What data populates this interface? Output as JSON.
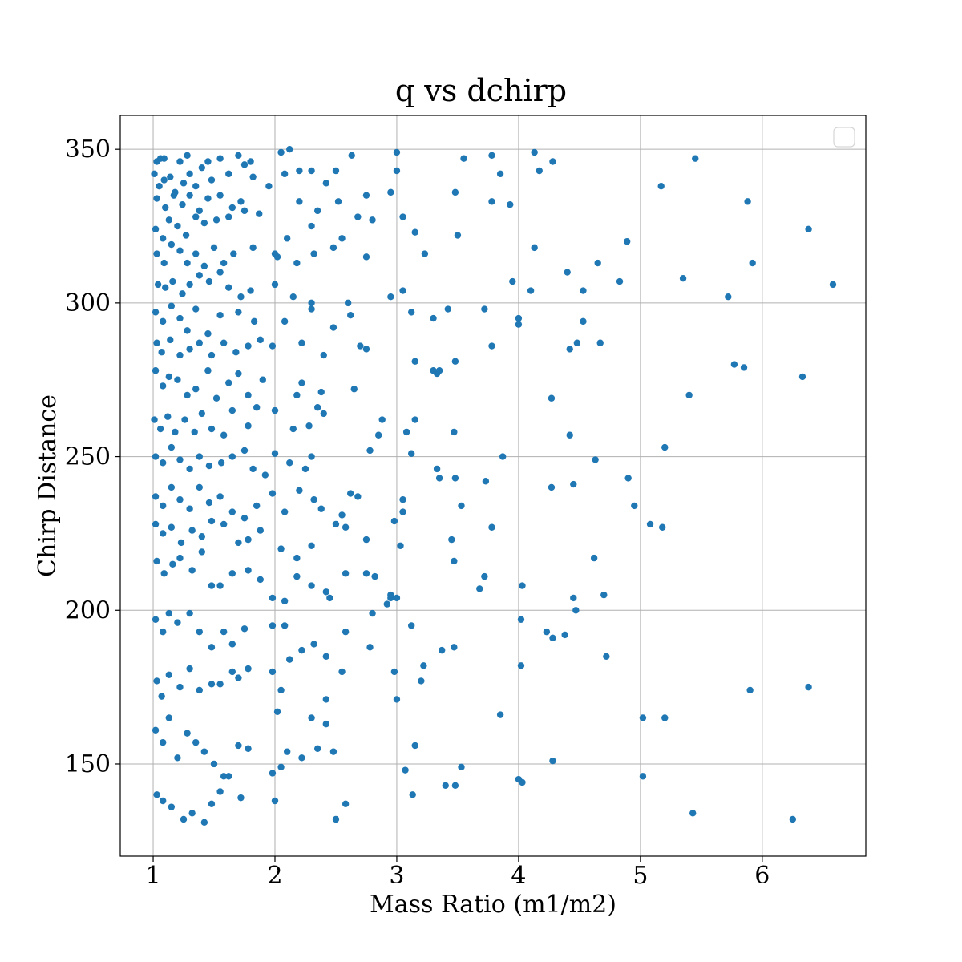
{
  "chart_data": {
    "type": "scatter",
    "title": "q vs dchirp",
    "xlabel": "Mass Ratio (m1/m2)",
    "ylabel": "Chirp Distance",
    "xlim": [
      0.73,
      6.85
    ],
    "ylim": [
      120,
      361
    ],
    "xticks": [
      1,
      2,
      3,
      4,
      5,
      6
    ],
    "yticks": [
      150,
      200,
      250,
      300,
      350
    ],
    "grid": true,
    "legend": "top-right, empty",
    "color": "#1f77b4",
    "points": [
      [
        1.03,
        346
      ],
      [
        1.06,
        347
      ],
      [
        1.09,
        347
      ],
      [
        1.22,
        346
      ],
      [
        1.28,
        348
      ],
      [
        1.45,
        346
      ],
      [
        1.55,
        347
      ],
      [
        1.7,
        348
      ],
      [
        1.8,
        346
      ],
      [
        2.05,
        349
      ],
      [
        2.12,
        350
      ],
      [
        2.63,
        348
      ],
      [
        3.0,
        349
      ],
      [
        3.55,
        347
      ],
      [
        3.78,
        348
      ],
      [
        4.13,
        349
      ],
      [
        4.28,
        346
      ],
      [
        5.45,
        347
      ],
      [
        1.01,
        342
      ],
      [
        1.05,
        338
      ],
      [
        1.09,
        340
      ],
      [
        1.14,
        341
      ],
      [
        1.18,
        336
      ],
      [
        1.25,
        339
      ],
      [
        1.3,
        342
      ],
      [
        1.35,
        338
      ],
      [
        1.4,
        344
      ],
      [
        1.48,
        340
      ],
      [
        1.62,
        342
      ],
      [
        1.75,
        345
      ],
      [
        1.82,
        341
      ],
      [
        2.08,
        342
      ],
      [
        2.2,
        343
      ],
      [
        2.3,
        343
      ],
      [
        2.42,
        339
      ],
      [
        2.5,
        343
      ],
      [
        3.0,
        343
      ],
      [
        3.48,
        336
      ],
      [
        3.85,
        342
      ],
      [
        4.17,
        343
      ],
      [
        5.17,
        338
      ],
      [
        1.03,
        334
      ],
      [
        1.1,
        331
      ],
      [
        1.17,
        335
      ],
      [
        1.24,
        332
      ],
      [
        1.3,
        335
      ],
      [
        1.38,
        330
      ],
      [
        1.45,
        334
      ],
      [
        1.55,
        335
      ],
      [
        1.65,
        331
      ],
      [
        1.72,
        333
      ],
      [
        1.95,
        338
      ],
      [
        2.2,
        333
      ],
      [
        2.35,
        330
      ],
      [
        2.52,
        333
      ],
      [
        2.75,
        335
      ],
      [
        2.95,
        336
      ],
      [
        3.78,
        333
      ],
      [
        3.93,
        332
      ],
      [
        5.88,
        333
      ],
      [
        1.02,
        324
      ],
      [
        1.08,
        321
      ],
      [
        1.13,
        327
      ],
      [
        1.2,
        325
      ],
      [
        1.27,
        322
      ],
      [
        1.35,
        328
      ],
      [
        1.42,
        326
      ],
      [
        1.52,
        327
      ],
      [
        1.62,
        328
      ],
      [
        1.75,
        330
      ],
      [
        1.87,
        329
      ],
      [
        2.0,
        316
      ],
      [
        2.1,
        321
      ],
      [
        2.3,
        325
      ],
      [
        2.55,
        321
      ],
      [
        2.68,
        328
      ],
      [
        2.8,
        327
      ],
      [
        3.05,
        328
      ],
      [
        3.15,
        323
      ],
      [
        3.5,
        322
      ],
      [
        6.38,
        324
      ],
      [
        1.03,
        316
      ],
      [
        1.09,
        313
      ],
      [
        1.15,
        319
      ],
      [
        1.22,
        317
      ],
      [
        1.28,
        313
      ],
      [
        1.35,
        316
      ],
      [
        1.42,
        312
      ],
      [
        1.5,
        318
      ],
      [
        1.58,
        313
      ],
      [
        1.66,
        316
      ],
      [
        1.82,
        318
      ],
      [
        2.02,
        315
      ],
      [
        2.18,
        313
      ],
      [
        2.32,
        316
      ],
      [
        2.48,
        318
      ],
      [
        2.75,
        315
      ],
      [
        3.23,
        316
      ],
      [
        4.13,
        318
      ],
      [
        4.65,
        313
      ],
      [
        4.89,
        320
      ],
      [
        5.92,
        313
      ],
      [
        1.04,
        306
      ],
      [
        1.1,
        305
      ],
      [
        1.16,
        307
      ],
      [
        1.24,
        303
      ],
      [
        1.3,
        306
      ],
      [
        1.38,
        309
      ],
      [
        1.46,
        307
      ],
      [
        1.55,
        310
      ],
      [
        1.62,
        305
      ],
      [
        1.72,
        302
      ],
      [
        1.8,
        304
      ],
      [
        2.0,
        306
      ],
      [
        2.15,
        302
      ],
      [
        2.3,
        300
      ],
      [
        2.6,
        300
      ],
      [
        2.95,
        302
      ],
      [
        3.05,
        304
      ],
      [
        3.95,
        307
      ],
      [
        4.1,
        304
      ],
      [
        4.4,
        310
      ],
      [
        4.53,
        304
      ],
      [
        4.83,
        307
      ],
      [
        5.35,
        308
      ],
      [
        5.72,
        302
      ],
      [
        6.58,
        306
      ],
      [
        1.02,
        297
      ],
      [
        1.08,
        294
      ],
      [
        1.15,
        299
      ],
      [
        1.22,
        295
      ],
      [
        1.28,
        291
      ],
      [
        1.35,
        298
      ],
      [
        1.45,
        290
      ],
      [
        1.55,
        296
      ],
      [
        1.7,
        297
      ],
      [
        1.83,
        294
      ],
      [
        2.08,
        294
      ],
      [
        2.3,
        298
      ],
      [
        2.48,
        292
      ],
      [
        2.62,
        296
      ],
      [
        3.12,
        297
      ],
      [
        3.3,
        295
      ],
      [
        3.42,
        298
      ],
      [
        3.72,
        298
      ],
      [
        4.0,
        293
      ],
      [
        4.0,
        295
      ],
      [
        4.53,
        294
      ],
      [
        1.03,
        287
      ],
      [
        1.07,
        284
      ],
      [
        1.14,
        288
      ],
      [
        1.22,
        283
      ],
      [
        1.3,
        285
      ],
      [
        1.38,
        287
      ],
      [
        1.48,
        283
      ],
      [
        1.58,
        287
      ],
      [
        1.68,
        284
      ],
      [
        1.78,
        286
      ],
      [
        1.88,
        288
      ],
      [
        1.98,
        286
      ],
      [
        2.22,
        287
      ],
      [
        2.4,
        283
      ],
      [
        2.7,
        286
      ],
      [
        2.75,
        285
      ],
      [
        3.15,
        281
      ],
      [
        3.3,
        278
      ],
      [
        3.48,
        281
      ],
      [
        3.78,
        286
      ],
      [
        4.42,
        285
      ],
      [
        4.48,
        287
      ],
      [
        4.67,
        287
      ],
      [
        5.77,
        280
      ],
      [
        5.85,
        279
      ],
      [
        1.02,
        278
      ],
      [
        1.08,
        273
      ],
      [
        1.13,
        276
      ],
      [
        1.2,
        275
      ],
      [
        1.28,
        270
      ],
      [
        1.35,
        272
      ],
      [
        1.45,
        278
      ],
      [
        1.52,
        269
      ],
      [
        1.62,
        274
      ],
      [
        1.7,
        277
      ],
      [
        1.78,
        270
      ],
      [
        1.9,
        275
      ],
      [
        2.18,
        270
      ],
      [
        2.22,
        274
      ],
      [
        2.35,
        266
      ],
      [
        2.38,
        271
      ],
      [
        2.65,
        272
      ],
      [
        3.33,
        277
      ],
      [
        3.35,
        278
      ],
      [
        4.27,
        269
      ],
      [
        5.4,
        270
      ],
      [
        6.33,
        276
      ],
      [
        1.01,
        262
      ],
      [
        1.06,
        259
      ],
      [
        1.12,
        263
      ],
      [
        1.18,
        258
      ],
      [
        1.26,
        262
      ],
      [
        1.34,
        258
      ],
      [
        1.4,
        264
      ],
      [
        1.48,
        259
      ],
      [
        1.58,
        257
      ],
      [
        1.65,
        265
      ],
      [
        1.78,
        260
      ],
      [
        1.85,
        266
      ],
      [
        2.0,
        265
      ],
      [
        2.15,
        259
      ],
      [
        2.28,
        260
      ],
      [
        2.4,
        264
      ],
      [
        2.85,
        257
      ],
      [
        2.88,
        262
      ],
      [
        3.08,
        258
      ],
      [
        3.15,
        262
      ],
      [
        3.47,
        258
      ],
      [
        4.42,
        257
      ],
      [
        1.02,
        250
      ],
      [
        1.08,
        248
      ],
      [
        1.15,
        253
      ],
      [
        1.22,
        249
      ],
      [
        1.3,
        246
      ],
      [
        1.38,
        250
      ],
      [
        1.46,
        247
      ],
      [
        1.56,
        248
      ],
      [
        1.65,
        250
      ],
      [
        1.75,
        252
      ],
      [
        1.82,
        246
      ],
      [
        1.92,
        244
      ],
      [
        2.0,
        251
      ],
      [
        2.12,
        248
      ],
      [
        2.25,
        246
      ],
      [
        2.3,
        250
      ],
      [
        2.78,
        252
      ],
      [
        3.12,
        251
      ],
      [
        3.33,
        246
      ],
      [
        3.35,
        243
      ],
      [
        3.48,
        243
      ],
      [
        3.73,
        242
      ],
      [
        3.87,
        250
      ],
      [
        4.27,
        240
      ],
      [
        4.45,
        241
      ],
      [
        4.63,
        249
      ],
      [
        4.9,
        243
      ],
      [
        5.2,
        253
      ],
      [
        1.02,
        237
      ],
      [
        1.08,
        234
      ],
      [
        1.15,
        240
      ],
      [
        1.22,
        236
      ],
      [
        1.3,
        233
      ],
      [
        1.38,
        240
      ],
      [
        1.46,
        235
      ],
      [
        1.55,
        237
      ],
      [
        1.65,
        232
      ],
      [
        1.75,
        230
      ],
      [
        1.85,
        234
      ],
      [
        1.98,
        238
      ],
      [
        2.08,
        232
      ],
      [
        2.2,
        239
      ],
      [
        2.32,
        236
      ],
      [
        2.38,
        233
      ],
      [
        2.55,
        231
      ],
      [
        2.62,
        238
      ],
      [
        2.68,
        237
      ],
      [
        3.05,
        236
      ],
      [
        3.05,
        232
      ],
      [
        3.53,
        234
      ],
      [
        4.95,
        234
      ],
      [
        1.02,
        228
      ],
      [
        1.08,
        225
      ],
      [
        1.15,
        227
      ],
      [
        1.23,
        222
      ],
      [
        1.32,
        226
      ],
      [
        1.4,
        224
      ],
      [
        1.48,
        229
      ],
      [
        1.58,
        228
      ],
      [
        1.7,
        222
      ],
      [
        1.78,
        223
      ],
      [
        1.88,
        226
      ],
      [
        2.05,
        220
      ],
      [
        2.18,
        217
      ],
      [
        2.3,
        221
      ],
      [
        2.5,
        228
      ],
      [
        2.58,
        227
      ],
      [
        2.75,
        223
      ],
      [
        2.98,
        229
      ],
      [
        3.03,
        221
      ],
      [
        3.45,
        223
      ],
      [
        3.47,
        216
      ],
      [
        3.78,
        227
      ],
      [
        5.08,
        228
      ],
      [
        5.18,
        227
      ],
      [
        1.03,
        216
      ],
      [
        1.09,
        212
      ],
      [
        1.16,
        215
      ],
      [
        1.22,
        217
      ],
      [
        1.32,
        213
      ],
      [
        1.4,
        219
      ],
      [
        1.48,
        208
      ],
      [
        1.55,
        208
      ],
      [
        1.65,
        212
      ],
      [
        1.78,
        213
      ],
      [
        1.88,
        210
      ],
      [
        1.98,
        204
      ],
      [
        2.08,
        203
      ],
      [
        2.18,
        211
      ],
      [
        2.3,
        208
      ],
      [
        2.42,
        206
      ],
      [
        2.45,
        204
      ],
      [
        2.58,
        212
      ],
      [
        2.75,
        212
      ],
      [
        2.82,
        211
      ],
      [
        2.95,
        204
      ],
      [
        3.0,
        204
      ],
      [
        3.68,
        207
      ],
      [
        3.72,
        211
      ],
      [
        4.03,
        208
      ],
      [
        4.45,
        204
      ],
      [
        4.47,
        200
      ],
      [
        4.62,
        217
      ],
      [
        4.7,
        205
      ],
      [
        1.02,
        197
      ],
      [
        1.08,
        193
      ],
      [
        1.13,
        199
      ],
      [
        1.2,
        196
      ],
      [
        1.3,
        199
      ],
      [
        1.38,
        193
      ],
      [
        1.48,
        188
      ],
      [
        1.58,
        193
      ],
      [
        1.65,
        189
      ],
      [
        1.75,
        194
      ],
      [
        1.98,
        195
      ],
      [
        2.08,
        195
      ],
      [
        2.12,
        184
      ],
      [
        2.22,
        187
      ],
      [
        2.32,
        189
      ],
      [
        2.42,
        185
      ],
      [
        2.58,
        193
      ],
      [
        2.78,
        188
      ],
      [
        2.92,
        202
      ],
      [
        2.95,
        205
      ],
      [
        3.12,
        195
      ],
      [
        3.37,
        187
      ],
      [
        3.47,
        188
      ],
      [
        4.02,
        197
      ],
      [
        4.23,
        193
      ],
      [
        4.28,
        191
      ],
      [
        4.38,
        192
      ],
      [
        4.72,
        185
      ],
      [
        1.03,
        177
      ],
      [
        1.07,
        172
      ],
      [
        1.13,
        179
      ],
      [
        1.22,
        175
      ],
      [
        1.3,
        181
      ],
      [
        1.38,
        174
      ],
      [
        1.48,
        176
      ],
      [
        1.55,
        176
      ],
      [
        1.65,
        180
      ],
      [
        1.7,
        178
      ],
      [
        1.78,
        181
      ],
      [
        1.98,
        180
      ],
      [
        2.02,
        167
      ],
      [
        2.05,
        174
      ],
      [
        2.42,
        171
      ],
      [
        2.55,
        180
      ],
      [
        2.98,
        180
      ],
      [
        3.0,
        171
      ],
      [
        3.2,
        177
      ],
      [
        3.22,
        182
      ],
      [
        4.02,
        182
      ],
      [
        5.9,
        174
      ],
      [
        6.38,
        175
      ],
      [
        1.02,
        161
      ],
      [
        1.08,
        157
      ],
      [
        1.13,
        165
      ],
      [
        1.2,
        152
      ],
      [
        1.28,
        160
      ],
      [
        1.35,
        157
      ],
      [
        1.42,
        154
      ],
      [
        1.5,
        150
      ],
      [
        1.58,
        146
      ],
      [
        1.7,
        156
      ],
      [
        1.78,
        155
      ],
      [
        1.98,
        147
      ],
      [
        2.05,
        149
      ],
      [
        2.1,
        154
      ],
      [
        2.22,
        152
      ],
      [
        2.3,
        165
      ],
      [
        2.35,
        155
      ],
      [
        2.42,
        163
      ],
      [
        2.48,
        154
      ],
      [
        2.58,
        137
      ],
      [
        2.8,
        199
      ],
      [
        3.15,
        156
      ],
      [
        3.07,
        148
      ],
      [
        3.53,
        149
      ],
      [
        3.85,
        166
      ],
      [
        4.28,
        151
      ],
      [
        5.02,
        165
      ],
      [
        5.2,
        165
      ],
      [
        5.02,
        146
      ],
      [
        1.03,
        140
      ],
      [
        1.08,
        138
      ],
      [
        1.15,
        136
      ],
      [
        1.25,
        132
      ],
      [
        1.32,
        134
      ],
      [
        1.42,
        131
      ],
      [
        1.48,
        137
      ],
      [
        1.55,
        141
      ],
      [
        1.62,
        146
      ],
      [
        1.72,
        139
      ],
      [
        2.0,
        138
      ],
      [
        2.5,
        132
      ],
      [
        3.13,
        140
      ],
      [
        3.4,
        143
      ],
      [
        3.48,
        143
      ],
      [
        4.0,
        145
      ],
      [
        4.03,
        144
      ],
      [
        5.43,
        134
      ],
      [
        6.25,
        132
      ]
    ]
  }
}
